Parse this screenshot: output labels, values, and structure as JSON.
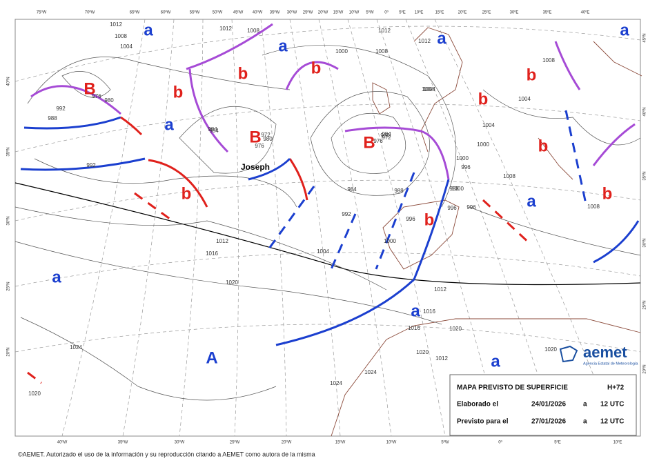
{
  "map": {
    "pressure_centers": [
      "B",
      "B",
      "B",
      "b",
      "b",
      "b",
      "b",
      "b",
      "b",
      "b",
      "b",
      "b",
      "A",
      "a",
      "a",
      "a",
      "a",
      "a",
      "a",
      "a",
      "a",
      "a"
    ],
    "storm_name": "Joseph",
    "isobar_labels": [
      "1012",
      "1008",
      "1004",
      "1012",
      "1008",
      "1012",
      "1012",
      "1012",
      "1000",
      "1008",
      "1004",
      "992",
      "988",
      "984",
      "980",
      "976",
      "992",
      "984",
      "980",
      "976",
      "972",
      "980",
      "984",
      "988",
      "984",
      "976",
      "972",
      "996",
      "988",
      "992",
      "996",
      "1000",
      "1004",
      "1004",
      "1000",
      "1000",
      "1008",
      "1004",
      "1008",
      "1012",
      "1016",
      "1020",
      "1024",
      "1020",
      "1012",
      "1016",
      "1016",
      "1020",
      "1024",
      "1020",
      "1024",
      "1020",
      "996",
      "1000",
      "996",
      "1004",
      "1008"
    ],
    "lon_top": [
      "75ºW",
      "70ºW",
      "65ºW",
      "60ºW",
      "55ºW",
      "50ºW",
      "45ºW",
      "40ºW",
      "35ºW",
      "30ºW",
      "25ºW",
      "20ºW",
      "15ºW",
      "10ºW",
      "5ºW",
      "0º",
      "5ºE",
      "10ºE",
      "15ºE",
      "20ºE",
      "25ºE",
      "30ºE",
      "35ºE",
      "40ºE"
    ],
    "lon_bottom": [
      "40ºW",
      "35ºW",
      "30ºW",
      "25ºW",
      "20ºW",
      "15ºW",
      "10ºW",
      "5ºW",
      "0º",
      "5ºE",
      "10ºE"
    ],
    "lat_left": [
      "40ºN",
      "35ºN",
      "30ºN",
      "25ºN",
      "20ºN"
    ],
    "lat_right": [
      "45ºN",
      "40ºN",
      "35ºN",
      "30ºN",
      "25ºN",
      "20ºN"
    ]
  },
  "info": {
    "title": "MAPA PREVISTO DE SUPERFICIE",
    "step": "H+72",
    "rows": [
      [
        "Elaborado el",
        "24/01/2026",
        "a",
        "12 UTC"
      ],
      [
        "Previsto para el",
        "27/01/2026",
        "a",
        "12 UTC"
      ]
    ]
  },
  "logo": {
    "name": "aemet",
    "subtitle": "Agencia Estatal de Meteorología"
  },
  "footer": "©AEMET. Autorizado el uso de la información y su reproducción citando a AEMET como autora de la misma"
}
